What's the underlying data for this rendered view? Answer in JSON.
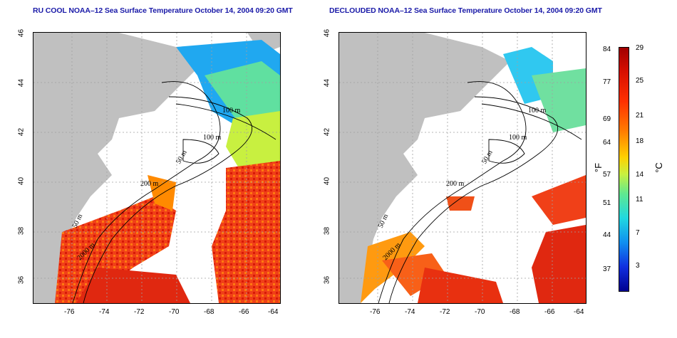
{
  "panels": [
    {
      "title": "RU COOL NOAA–12 Sea Surface Temperature October 14, 2004 09:20 GMT"
    },
    {
      "title": "DECLOUDED NOAA–12 Sea Surface Temperature October 14, 2004 09:20 GMT"
    }
  ],
  "axes": {
    "lat_ticks": [
      "46",
      "44",
      "42",
      "40",
      "38",
      "36"
    ],
    "lon_ticks": [
      "-76",
      "-74",
      "-72",
      "-70",
      "-68",
      "-66",
      "-64"
    ]
  },
  "contours": {
    "labels": [
      "100 m",
      "100 m",
      "50 m",
      "200 m",
      "50 m",
      "2000 m"
    ]
  },
  "colorbar": {
    "f_unit": "°F",
    "c_unit": "°C",
    "f_labels": [
      "84",
      "77",
      "69",
      "64",
      "57",
      "51",
      "44",
      "37"
    ],
    "c_labels": [
      "29",
      "25",
      "21",
      "18",
      "14",
      "11",
      "7",
      "3"
    ]
  },
  "colors": {
    "land": "#c0c0c0",
    "cloud": "#ffffff",
    "title": "#1a1aa8",
    "warm": "#e83010",
    "cool": "#40c8e8"
  }
}
